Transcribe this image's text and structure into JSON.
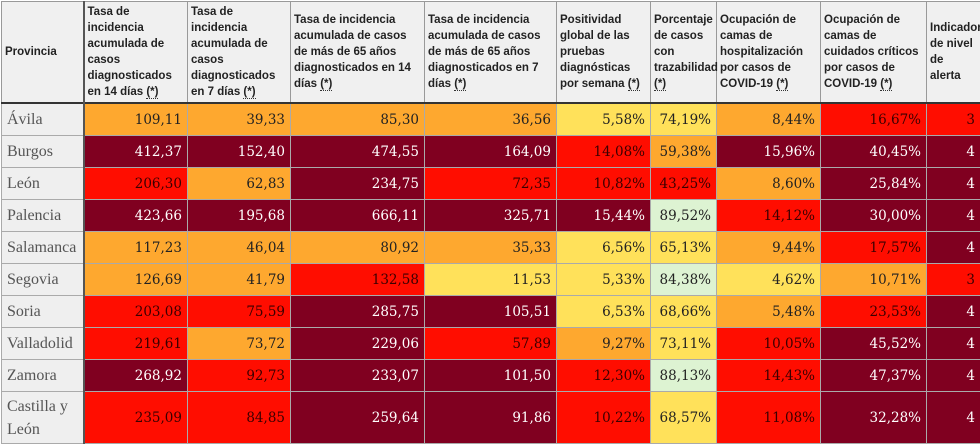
{
  "palette": {
    "O": "#fea82f",
    "D": "#800020",
    "R": "#ff0d00",
    "Y": "#ffe15a",
    "G": "#ddf3d2"
  },
  "text_colors": {
    "O": "#222",
    "D": "#fff",
    "R": "#3a0000",
    "Y": "#222",
    "G": "#222"
  },
  "headers": [
    {
      "label": "Provincia",
      "ast": ""
    },
    {
      "label": "Tasa de incidencia acumulada de casos diagnosticados en 14 días ",
      "ast": "(*)"
    },
    {
      "label": "Tasa de incidencia acumulada de casos diagnosticados en 7 días ",
      "ast": "(*)"
    },
    {
      "label": "Tasa de incidencia acumulada de casos de más de 65 años diagnosticados en 14 días ",
      "ast": "(*)"
    },
    {
      "label": "Tasa de incidencia acumulada de casos de más de 65 años diagnosticados en 7 días ",
      "ast": "(*)"
    },
    {
      "label": "Positividad global de las pruebas diagnósticas por semana ",
      "ast": "(*)"
    },
    {
      "label": "Porcentaje de casos con trazabilidad ",
      "ast": "(*)"
    },
    {
      "label": "Ocupación de camas de hospitalización por casos de COVID-19 ",
      "ast": "(*)"
    },
    {
      "label": "Ocupación de camas de cuidados críticos por casos de COVID-19 ",
      "ast": "(*)"
    },
    {
      "label": "Indicador de nivel de alerta",
      "ast": ""
    }
  ],
  "rows": [
    {
      "province": "Ávila",
      "values": [
        "109,11",
        "39,33",
        "85,30",
        "36,56",
        "5,58%",
        "74,19%",
        "8,44%",
        "16,67%",
        "3"
      ],
      "levels": [
        "O",
        "O",
        "O",
        "O",
        "Y",
        "Y",
        "O",
        "R",
        "R"
      ]
    },
    {
      "province": "Burgos",
      "values": [
        "412,37",
        "152,40",
        "474,55",
        "164,09",
        "14,08%",
        "59,38%",
        "15,96%",
        "40,45%",
        "4"
      ],
      "levels": [
        "D",
        "D",
        "D",
        "D",
        "R",
        "O",
        "D",
        "D",
        "D"
      ]
    },
    {
      "province": "León",
      "values": [
        "206,30",
        "62,83",
        "234,75",
        "72,35",
        "10,82%",
        "43,25%",
        "8,60%",
        "25,84%",
        "4"
      ],
      "levels": [
        "R",
        "O",
        "D",
        "R",
        "R",
        "R",
        "O",
        "D",
        "D"
      ]
    },
    {
      "province": "Palencia",
      "values": [
        "423,66",
        "195,68",
        "666,11",
        "325,71",
        "15,44%",
        "89,52%",
        "14,12%",
        "30,00%",
        "4"
      ],
      "levels": [
        "D",
        "D",
        "D",
        "D",
        "D",
        "G",
        "R",
        "D",
        "D"
      ]
    },
    {
      "province": "Salamanca",
      "values": [
        "117,23",
        "46,04",
        "80,92",
        "35,33",
        "6,56%",
        "65,13%",
        "9,44%",
        "17,57%",
        "4"
      ],
      "levels": [
        "O",
        "O",
        "O",
        "O",
        "Y",
        "Y",
        "O",
        "R",
        "D"
      ]
    },
    {
      "province": "Segovia",
      "values": [
        "126,69",
        "41,79",
        "132,58",
        "11,53",
        "5,33%",
        "84,38%",
        "4,62%",
        "10,71%",
        "3"
      ],
      "levels": [
        "O",
        "O",
        "R",
        "Y",
        "Y",
        "G",
        "Y",
        "O",
        "R"
      ]
    },
    {
      "province": "Soria",
      "values": [
        "203,08",
        "75,59",
        "285,75",
        "105,51",
        "6,53%",
        "68,66%",
        "5,48%",
        "23,53%",
        "4"
      ],
      "levels": [
        "R",
        "R",
        "D",
        "D",
        "Y",
        "Y",
        "O",
        "R",
        "D"
      ]
    },
    {
      "province": "Valladolid",
      "values": [
        "219,61",
        "73,72",
        "229,06",
        "57,89",
        "9,27%",
        "73,11%",
        "10,05%",
        "45,52%",
        "4"
      ],
      "levels": [
        "R",
        "O",
        "D",
        "R",
        "O",
        "Y",
        "R",
        "D",
        "D"
      ]
    },
    {
      "province": "Zamora",
      "values": [
        "268,92",
        "92,73",
        "233,07",
        "101,50",
        "12,30%",
        "88,13%",
        "14,43%",
        "47,37%",
        "4"
      ],
      "levels": [
        "D",
        "R",
        "D",
        "D",
        "R",
        "G",
        "R",
        "D",
        "D"
      ]
    },
    {
      "province": "Castilla y León",
      "values": [
        "235,09",
        "84,85",
        "259,64",
        "91,86",
        "10,22%",
        "68,57%",
        "11,08%",
        "32,28%",
        "4"
      ],
      "levels": [
        "R",
        "R",
        "D",
        "D",
        "R",
        "Y",
        "R",
        "D",
        "D"
      ]
    }
  ]
}
